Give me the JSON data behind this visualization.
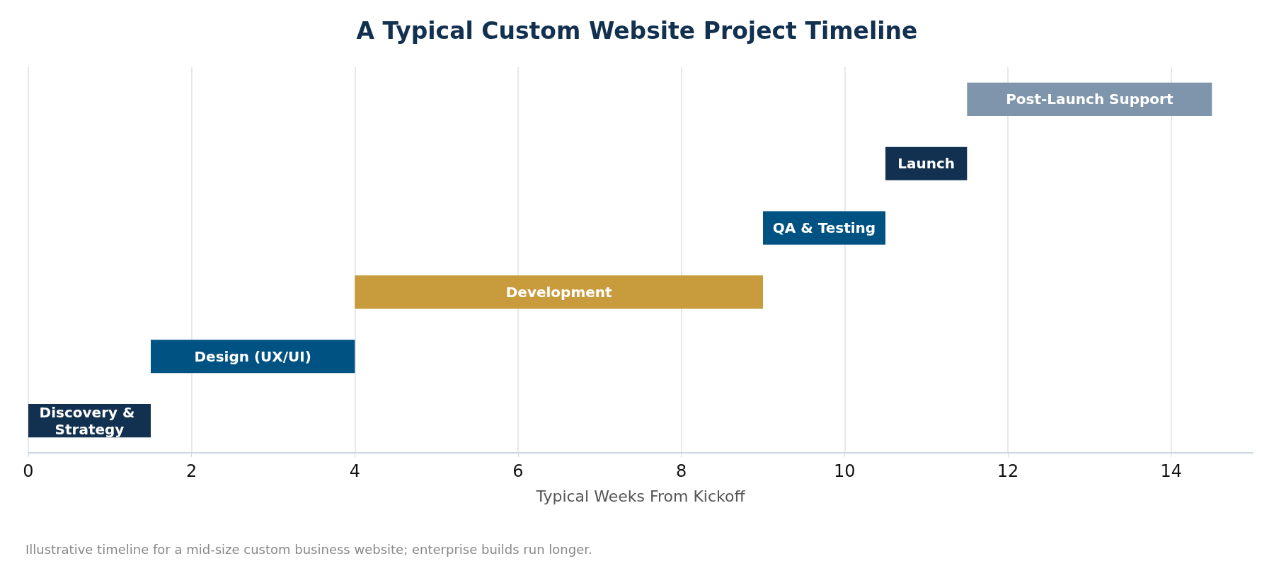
{
  "chart_data": {
    "type": "bar",
    "orientation": "horizontal",
    "title": "A Typical Custom Website Project Timeline",
    "xlabel": "Typical Weeks From Kickoff",
    "categories": [
      "Post-Launch Support",
      "Launch",
      "QA & Testing",
      "Development",
      "Design (UX/UI)",
      "Discovery & Strategy"
    ],
    "base": [
      11.5,
      10.5,
      9,
      4,
      1.5,
      0
    ],
    "values": [
      3,
      1,
      1.5,
      5,
      2.5,
      1.5
    ],
    "colors": [
      "#7f95ab",
      "#12304f",
      "#005282",
      "#c89b3c",
      "#005282",
      "#12304f"
    ],
    "xlim": [
      0,
      15
    ],
    "xticks": [
      0,
      2,
      4,
      6,
      8,
      10,
      12,
      14
    ],
    "grid": "x",
    "annotations": [
      "Illustrative timeline for a mid-size custom business website; enterprise builds run longer."
    ]
  }
}
